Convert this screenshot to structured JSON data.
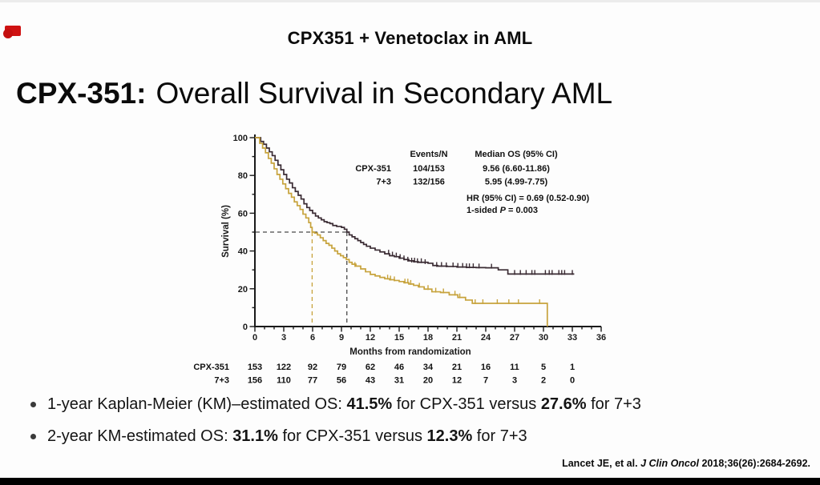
{
  "header": {
    "kicker": "CPX351 + Venetoclax in AML",
    "badge_icon": "red-video-record-badge",
    "badge_color": "#cf1212"
  },
  "title": {
    "bold": "CPX-351:",
    "rest": "Overall Survival in Secondary AML"
  },
  "chart_data": {
    "type": "line",
    "subtype": "kaplan-meier-step",
    "title": "",
    "xlabel": "Months from randomization",
    "ylabel": "Survival (%)",
    "xlim": [
      0,
      36
    ],
    "ylim": [
      0,
      100
    ],
    "xticks": [
      0,
      3,
      6,
      9,
      12,
      15,
      18,
      21,
      24,
      27,
      30,
      33,
      36
    ],
    "yticks": [
      0,
      20,
      40,
      60,
      80,
      100
    ],
    "minor_x_step": 1,
    "minor_y_step": 10,
    "grid": false,
    "median_guides": {
      "y": 50,
      "color": "#4a4a4a"
    },
    "legend": {
      "col_events": "Events/N",
      "col_median": "Median OS (95% CI)",
      "rows": [
        {
          "name": "CPX-351",
          "events": "104/153",
          "median": "9.56 (6.60-11.86)"
        },
        {
          "name": "7+3",
          "events": "132/156",
          "median": "5.95 (4.99-7.75)"
        }
      ],
      "hr_line": "HR (95% CI) = 0.69 (0.52-0.90)",
      "p_parts": [
        {
          "t": "1-sided ",
          "i": false
        },
        {
          "t": "P",
          "i": true
        },
        {
          "t": " = 0.003",
          "i": false
        }
      ]
    },
    "series": [
      {
        "name": "CPX-351",
        "color": "#3a2b33",
        "median": 9.56,
        "points": [
          [
            0,
            100
          ],
          [
            0.6,
            98
          ],
          [
            0.9,
            96.5
          ],
          [
            1.2,
            94.5
          ],
          [
            1.5,
            92.5
          ],
          [
            1.8,
            90.5
          ],
          [
            2.1,
            88
          ],
          [
            2.4,
            85.5
          ],
          [
            2.7,
            83
          ],
          [
            3.0,
            80.5
          ],
          [
            3.3,
            78
          ],
          [
            3.6,
            76
          ],
          [
            3.9,
            73.5
          ],
          [
            4.2,
            71.5
          ],
          [
            4.5,
            69.5
          ],
          [
            4.8,
            67.5
          ],
          [
            5.1,
            65
          ],
          [
            5.4,
            63
          ],
          [
            5.7,
            61.5
          ],
          [
            6.0,
            60
          ],
          [
            6.3,
            58.5
          ],
          [
            6.6,
            57.5
          ],
          [
            6.9,
            56.5
          ],
          [
            7.2,
            55.5
          ],
          [
            7.5,
            55
          ],
          [
            7.8,
            54.5
          ],
          [
            8.1,
            53.5
          ],
          [
            8.5,
            53
          ],
          [
            9.0,
            52.5
          ],
          [
            9.3,
            51.5
          ],
          [
            9.56,
            50
          ],
          [
            9.8,
            48.5
          ],
          [
            10.1,
            47.5
          ],
          [
            10.4,
            46.5
          ],
          [
            10.7,
            45.5
          ],
          [
            11.0,
            44.5
          ],
          [
            11.3,
            43.5
          ],
          [
            11.6,
            42.5
          ],
          [
            12.0,
            41.5
          ],
          [
            12.5,
            40.5
          ],
          [
            13.0,
            39.5
          ],
          [
            13.5,
            38.5
          ],
          [
            14.0,
            37.5
          ],
          [
            14.5,
            37
          ],
          [
            15.0,
            36.2
          ],
          [
            15.5,
            35.5
          ],
          [
            16.0,
            34.8
          ],
          [
            16.5,
            34.3
          ],
          [
            17.0,
            34
          ],
          [
            18.0,
            33.5
          ],
          [
            18.5,
            32.3
          ],
          [
            19.0,
            32
          ],
          [
            20.0,
            31.8
          ],
          [
            21.0,
            31.5
          ],
          [
            22.0,
            31.3
          ],
          [
            23.0,
            31.2
          ],
          [
            24.0,
            31.1
          ],
          [
            25.3,
            30
          ],
          [
            26.3,
            27.8
          ],
          [
            33.2,
            27.8
          ]
        ],
        "censors": [
          [
            13.9,
            38.5
          ],
          [
            14.3,
            37.5
          ],
          [
            14.7,
            37
          ],
          [
            15.1,
            36.2
          ],
          [
            15.5,
            35.5
          ],
          [
            15.9,
            34.8
          ],
          [
            16.3,
            34.3
          ],
          [
            16.6,
            34.3
          ],
          [
            16.9,
            34
          ],
          [
            17.3,
            34
          ],
          [
            17.7,
            33.5
          ],
          [
            18.9,
            32
          ],
          [
            19.4,
            32
          ],
          [
            19.9,
            31.8
          ],
          [
            20.6,
            31.8
          ],
          [
            21.1,
            31.5
          ],
          [
            21.6,
            31.5
          ],
          [
            22.0,
            31.3
          ],
          [
            22.3,
            31.3
          ],
          [
            22.7,
            31.3
          ],
          [
            23.3,
            31.2
          ],
          [
            24.6,
            31.1
          ],
          [
            27.0,
            27.8
          ],
          [
            27.6,
            27.8
          ],
          [
            28.2,
            27.8
          ],
          [
            28.8,
            27.8
          ],
          [
            29.1,
            27.8
          ],
          [
            30.2,
            27.8
          ],
          [
            30.6,
            27.8
          ],
          [
            30.9,
            27.8
          ],
          [
            31.6,
            27.8
          ],
          [
            31.9,
            27.8
          ],
          [
            32.2,
            27.8
          ],
          [
            33.0,
            27.8
          ]
        ]
      },
      {
        "name": "7+3",
        "color": "#c7a33c",
        "median": 5.95,
        "points": [
          [
            0,
            100
          ],
          [
            0.5,
            97
          ],
          [
            0.8,
            94.5
          ],
          [
            1.1,
            92
          ],
          [
            1.4,
            89
          ],
          [
            1.7,
            86.5
          ],
          [
            2.0,
            83.5
          ],
          [
            2.3,
            80.5
          ],
          [
            2.6,
            78
          ],
          [
            2.9,
            75.5
          ],
          [
            3.2,
            73
          ],
          [
            3.5,
            70.5
          ],
          [
            3.8,
            68.5
          ],
          [
            4.1,
            66
          ],
          [
            4.4,
            64
          ],
          [
            4.7,
            62
          ],
          [
            5.0,
            59.5
          ],
          [
            5.3,
            57.5
          ],
          [
            5.6,
            55
          ],
          [
            5.8,
            52.5
          ],
          [
            5.95,
            50
          ],
          [
            6.2,
            49.5
          ],
          [
            6.5,
            48.5
          ],
          [
            6.8,
            47
          ],
          [
            7.1,
            45.5
          ],
          [
            7.4,
            44
          ],
          [
            7.7,
            43
          ],
          [
            8.0,
            41.5
          ],
          [
            8.3,
            40
          ],
          [
            8.6,
            38.5
          ],
          [
            8.9,
            37.5
          ],
          [
            9.2,
            36.5
          ],
          [
            9.5,
            35.5
          ],
          [
            9.8,
            34
          ],
          [
            10.1,
            33
          ],
          [
            10.5,
            32
          ],
          [
            11.0,
            30.5
          ],
          [
            11.5,
            29
          ],
          [
            12.0,
            27.6
          ],
          [
            12.5,
            26.8
          ],
          [
            13.0,
            26
          ],
          [
            13.5,
            25.3
          ],
          [
            14.0,
            24.8
          ],
          [
            14.5,
            24.4
          ],
          [
            15.0,
            23.8
          ],
          [
            15.5,
            23.2
          ],
          [
            16.0,
            22.5
          ],
          [
            16.5,
            21.8
          ],
          [
            17.0,
            21
          ],
          [
            17.6,
            19.8
          ],
          [
            18.4,
            18.4
          ],
          [
            19.3,
            18
          ],
          [
            20.2,
            16.8
          ],
          [
            21.1,
            15.4
          ],
          [
            21.9,
            14
          ],
          [
            22.6,
            12.3
          ],
          [
            30.4,
            12.3
          ],
          [
            30.4,
            0
          ]
        ],
        "censors": [
          [
            10.4,
            32
          ],
          [
            13.8,
            25.3
          ],
          [
            14.1,
            24.8
          ],
          [
            14.5,
            24.4
          ],
          [
            15.6,
            23.2
          ],
          [
            15.9,
            23.2
          ],
          [
            16.2,
            22.5
          ],
          [
            17.1,
            21
          ],
          [
            18.0,
            19.8
          ],
          [
            18.8,
            18.4
          ],
          [
            19.6,
            18
          ],
          [
            20.8,
            16.8
          ],
          [
            21.3,
            15.4
          ],
          [
            22.9,
            12.3
          ],
          [
            23.7,
            12.3
          ],
          [
            25.2,
            12.3
          ],
          [
            26.4,
            12.3
          ],
          [
            27.4,
            12.3
          ],
          [
            29.6,
            12.3
          ]
        ]
      }
    ],
    "at_risk": {
      "months": [
        0,
        3,
        6,
        9,
        12,
        15,
        18,
        21,
        24,
        27,
        30,
        33
      ],
      "rows": [
        {
          "name": "CPX-351",
          "values": [
            153,
            122,
            92,
            79,
            62,
            46,
            34,
            21,
            16,
            11,
            5,
            1
          ]
        },
        {
          "name": "7+3",
          "values": [
            156,
            110,
            77,
            56,
            43,
            31,
            20,
            12,
            7,
            3,
            2,
            0
          ]
        }
      ]
    }
  },
  "bullets": [
    {
      "segments": [
        {
          "t": "1-year Kaplan-Meier (KM)–estimated OS: ",
          "b": false
        },
        {
          "t": "41.5%",
          "b": true
        },
        {
          "t": " for CPX-351 versus ",
          "b": false
        },
        {
          "t": "27.6%",
          "b": true
        },
        {
          "t": " for 7+3",
          "b": false
        }
      ]
    },
    {
      "segments": [
        {
          "t": "2-year KM-estimated OS: ",
          "b": false
        },
        {
          "t": "31.1%",
          "b": true
        },
        {
          "t": " for CPX-351 versus ",
          "b": false
        },
        {
          "t": "12.3%",
          "b": true
        },
        {
          "t": " for 7+3",
          "b": false
        }
      ]
    }
  ],
  "citation": {
    "segments": [
      {
        "t": "Lancet JE, et al. ",
        "i": false
      },
      {
        "t": "J Clin Oncol",
        "i": true
      },
      {
        "t": " 2018;36(26):2684-2692.",
        "i": false
      }
    ]
  }
}
